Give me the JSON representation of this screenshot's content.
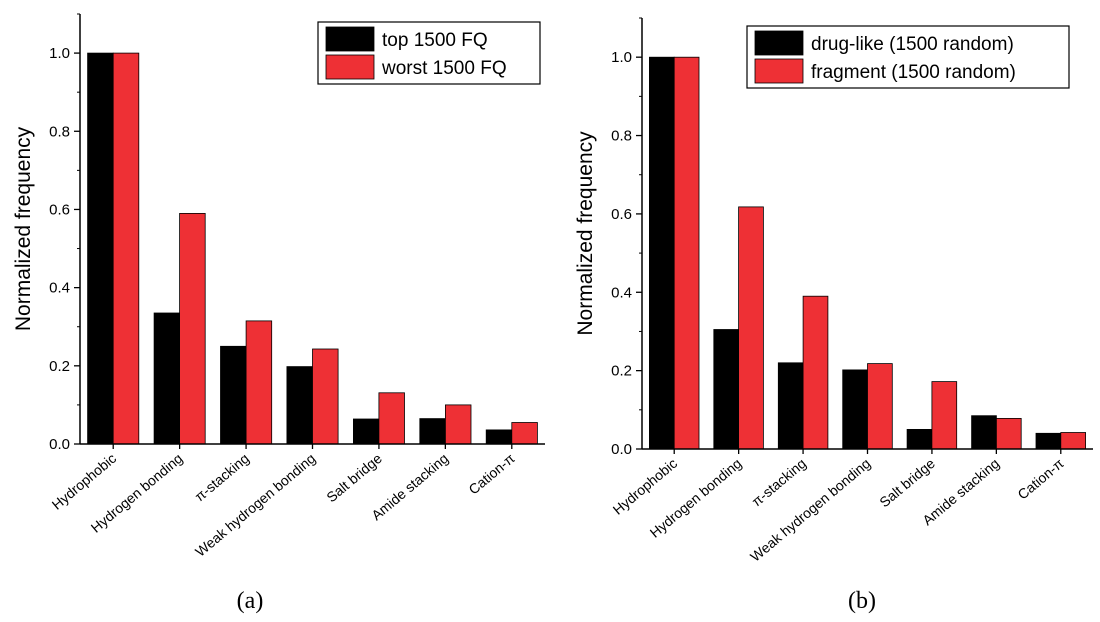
{
  "colors": {
    "black_series": "#000000",
    "red_series": "#ee3035"
  },
  "chart_data": [
    {
      "type": "bar",
      "panel_label": "(a)",
      "ylabel": "Normalized frequency",
      "ylim": [
        0,
        1.1
      ],
      "yticks": [
        "0.0",
        "0.2",
        "0.4",
        "0.6",
        "0.8",
        "1.0"
      ],
      "categories": [
        "Hydrophobic",
        "Hydrogen bonding",
        "π-stacking",
        "Weak hydrogen bonding",
        "Salt bridge",
        "Amide stacking",
        "Cation-π"
      ],
      "legend_position": "top-right",
      "series": [
        {
          "name": "top 1500 FQ",
          "color": "#000000",
          "values": [
            1.0,
            0.335,
            0.25,
            0.198,
            0.064,
            0.065,
            0.036
          ]
        },
        {
          "name": "worst 1500 FQ",
          "color": "#ee3035",
          "values": [
            1.0,
            0.59,
            0.315,
            0.243,
            0.131,
            0.1,
            0.055
          ]
        }
      ]
    },
    {
      "type": "bar",
      "panel_label": "(b)",
      "ylabel": "Normalized frequency",
      "ylim": [
        0,
        1.1
      ],
      "yticks": [
        "0.0",
        "0.2",
        "0.4",
        "0.6",
        "0.8",
        "1.0"
      ],
      "categories": [
        "Hydrophobic",
        "Hydrogen bonding",
        "π-stacking",
        "Weak hydrogen bonding",
        "Salt bridge",
        "Amide stacking",
        "Cation-π"
      ],
      "legend_position": "top-right",
      "series": [
        {
          "name": "drug-like (1500 random)",
          "color": "#000000",
          "values": [
            1.0,
            0.305,
            0.22,
            0.202,
            0.05,
            0.085,
            0.04
          ]
        },
        {
          "name": "fragment (1500 random)",
          "color": "#ee3035",
          "values": [
            1.0,
            0.618,
            0.39,
            0.218,
            0.172,
            0.078,
            0.042
          ]
        }
      ]
    }
  ]
}
